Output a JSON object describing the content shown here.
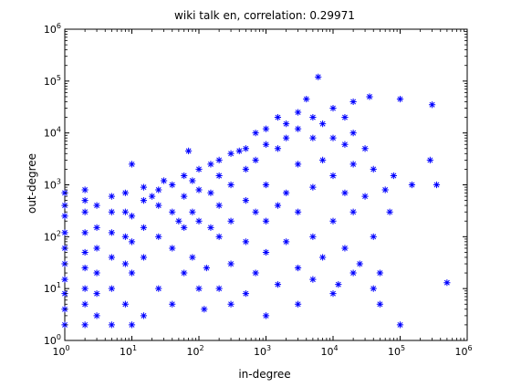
{
  "chart_data": {
    "type": "scatter",
    "title": "wiki talk en, correlation: 0.29971",
    "xlabel": "in-degree",
    "ylabel": "out-degree",
    "xscale": "log",
    "yscale": "log",
    "xlim": [
      1,
      1000000
    ],
    "ylim": [
      1,
      1000000
    ],
    "grid": false,
    "legend": "none",
    "marker": "*",
    "marker_color": "#0000ff",
    "x_ticks": [
      {
        "value": 1,
        "base": "10",
        "exp": "0"
      },
      {
        "value": 10,
        "base": "10",
        "exp": "1"
      },
      {
        "value": 100,
        "base": "10",
        "exp": "2"
      },
      {
        "value": 1000,
        "base": "10",
        "exp": "3"
      },
      {
        "value": 10000,
        "base": "10",
        "exp": "4"
      },
      {
        "value": 100000,
        "base": "10",
        "exp": "5"
      },
      {
        "value": 1000000,
        "base": "10",
        "exp": "6"
      }
    ],
    "y_ticks": [
      {
        "value": 1,
        "base": "10",
        "exp": "0"
      },
      {
        "value": 10,
        "base": "10",
        "exp": "1"
      },
      {
        "value": 100,
        "base": "10",
        "exp": "2"
      },
      {
        "value": 1000,
        "base": "10",
        "exp": "3"
      },
      {
        "value": 10000,
        "base": "10",
        "exp": "4"
      },
      {
        "value": 100000,
        "base": "10",
        "exp": "5"
      },
      {
        "value": 1000000,
        "base": "10",
        "exp": "6"
      }
    ],
    "points": [
      [
        1,
        2
      ],
      [
        1,
        4
      ],
      [
        1,
        8
      ],
      [
        1,
        15
      ],
      [
        1,
        30
      ],
      [
        1,
        60
      ],
      [
        1,
        120
      ],
      [
        1,
        250
      ],
      [
        1,
        400
      ],
      [
        1,
        700
      ],
      [
        2,
        2
      ],
      [
        2,
        5
      ],
      [
        2,
        10
      ],
      [
        2,
        25
      ],
      [
        2,
        50
      ],
      [
        2,
        120
      ],
      [
        2,
        300
      ],
      [
        2,
        500
      ],
      [
        2,
        800
      ],
      [
        3,
        3
      ],
      [
        3,
        8
      ],
      [
        3,
        20
      ],
      [
        3,
        60
      ],
      [
        3,
        150
      ],
      [
        3,
        400
      ],
      [
        5,
        2
      ],
      [
        5,
        10
      ],
      [
        5,
        40
      ],
      [
        5,
        120
      ],
      [
        5,
        300
      ],
      [
        5,
        600
      ],
      [
        8,
        5
      ],
      [
        8,
        30
      ],
      [
        8,
        100
      ],
      [
        8,
        300
      ],
      [
        8,
        700
      ],
      [
        10,
        2
      ],
      [
        10,
        20
      ],
      [
        10,
        80
      ],
      [
        10,
        250
      ],
      [
        10,
        2500
      ],
      [
        15,
        3
      ],
      [
        15,
        40
      ],
      [
        15,
        150
      ],
      [
        15,
        500
      ],
      [
        15,
        900
      ],
      [
        20,
        600
      ],
      [
        25,
        10
      ],
      [
        25,
        100
      ],
      [
        25,
        400
      ],
      [
        25,
        800
      ],
      [
        30,
        1200
      ],
      [
        40,
        5
      ],
      [
        40,
        60
      ],
      [
        40,
        300
      ],
      [
        40,
        1000
      ],
      [
        50,
        200
      ],
      [
        60,
        20
      ],
      [
        60,
        150
      ],
      [
        60,
        600
      ],
      [
        60,
        1500
      ],
      [
        70,
        4500
      ],
      [
        80,
        40
      ],
      [
        80,
        300
      ],
      [
        80,
        1200
      ],
      [
        100,
        10
      ],
      [
        100,
        200
      ],
      [
        100,
        800
      ],
      [
        100,
        2000
      ],
      [
        120,
        4
      ],
      [
        130,
        25
      ],
      [
        150,
        150
      ],
      [
        150,
        700
      ],
      [
        150,
        2500
      ],
      [
        200,
        10
      ],
      [
        200,
        100
      ],
      [
        200,
        400
      ],
      [
        200,
        1500
      ],
      [
        200,
        3000
      ],
      [
        300,
        5
      ],
      [
        300,
        30
      ],
      [
        300,
        200
      ],
      [
        300,
        1000
      ],
      [
        300,
        4000
      ],
      [
        400,
        4500
      ],
      [
        500,
        8
      ],
      [
        500,
        80
      ],
      [
        500,
        500
      ],
      [
        500,
        2000
      ],
      [
        500,
        5000
      ],
      [
        700,
        20
      ],
      [
        700,
        300
      ],
      [
        700,
        3000
      ],
      [
        700,
        10000
      ],
      [
        1000,
        3
      ],
      [
        1000,
        50
      ],
      [
        1000,
        200
      ],
      [
        1000,
        1000
      ],
      [
        1000,
        6000
      ],
      [
        1000,
        12000
      ],
      [
        1500,
        12
      ],
      [
        1500,
        400
      ],
      [
        1500,
        5000
      ],
      [
        1500,
        20000
      ],
      [
        2000,
        80
      ],
      [
        2000,
        700
      ],
      [
        2000,
        8000
      ],
      [
        2000,
        15000
      ],
      [
        3000,
        5
      ],
      [
        3000,
        25
      ],
      [
        3000,
        300
      ],
      [
        3000,
        2500
      ],
      [
        3000,
        12000
      ],
      [
        3000,
        25000
      ],
      [
        4000,
        45000
      ],
      [
        5000,
        15
      ],
      [
        5000,
        100
      ],
      [
        5000,
        900
      ],
      [
        5000,
        8000
      ],
      [
        5000,
        20000
      ],
      [
        6000,
        120000
      ],
      [
        7000,
        40
      ],
      [
        7000,
        3000
      ],
      [
        7000,
        15000
      ],
      [
        10000,
        8
      ],
      [
        10000,
        200
      ],
      [
        10000,
        1500
      ],
      [
        10000,
        8000
      ],
      [
        10000,
        30000
      ],
      [
        12000,
        12
      ],
      [
        15000,
        60
      ],
      [
        15000,
        700
      ],
      [
        15000,
        6000
      ],
      [
        15000,
        20000
      ],
      [
        20000,
        20
      ],
      [
        20000,
        300
      ],
      [
        20000,
        2500
      ],
      [
        20000,
        10000
      ],
      [
        20000,
        40000
      ],
      [
        25000,
        30
      ],
      [
        30000,
        600
      ],
      [
        30000,
        5000
      ],
      [
        35000,
        50000
      ],
      [
        40000,
        10
      ],
      [
        40000,
        100
      ],
      [
        40000,
        2000
      ],
      [
        50000,
        20
      ],
      [
        50000,
        5
      ],
      [
        60000,
        800
      ],
      [
        70000,
        300
      ],
      [
        80000,
        1500
      ],
      [
        100000,
        2
      ],
      [
        100000,
        45000
      ],
      [
        150000,
        1000
      ],
      [
        280000,
        3000
      ],
      [
        300000,
        35000
      ],
      [
        350000,
        1000
      ],
      [
        500000,
        13
      ]
    ]
  }
}
